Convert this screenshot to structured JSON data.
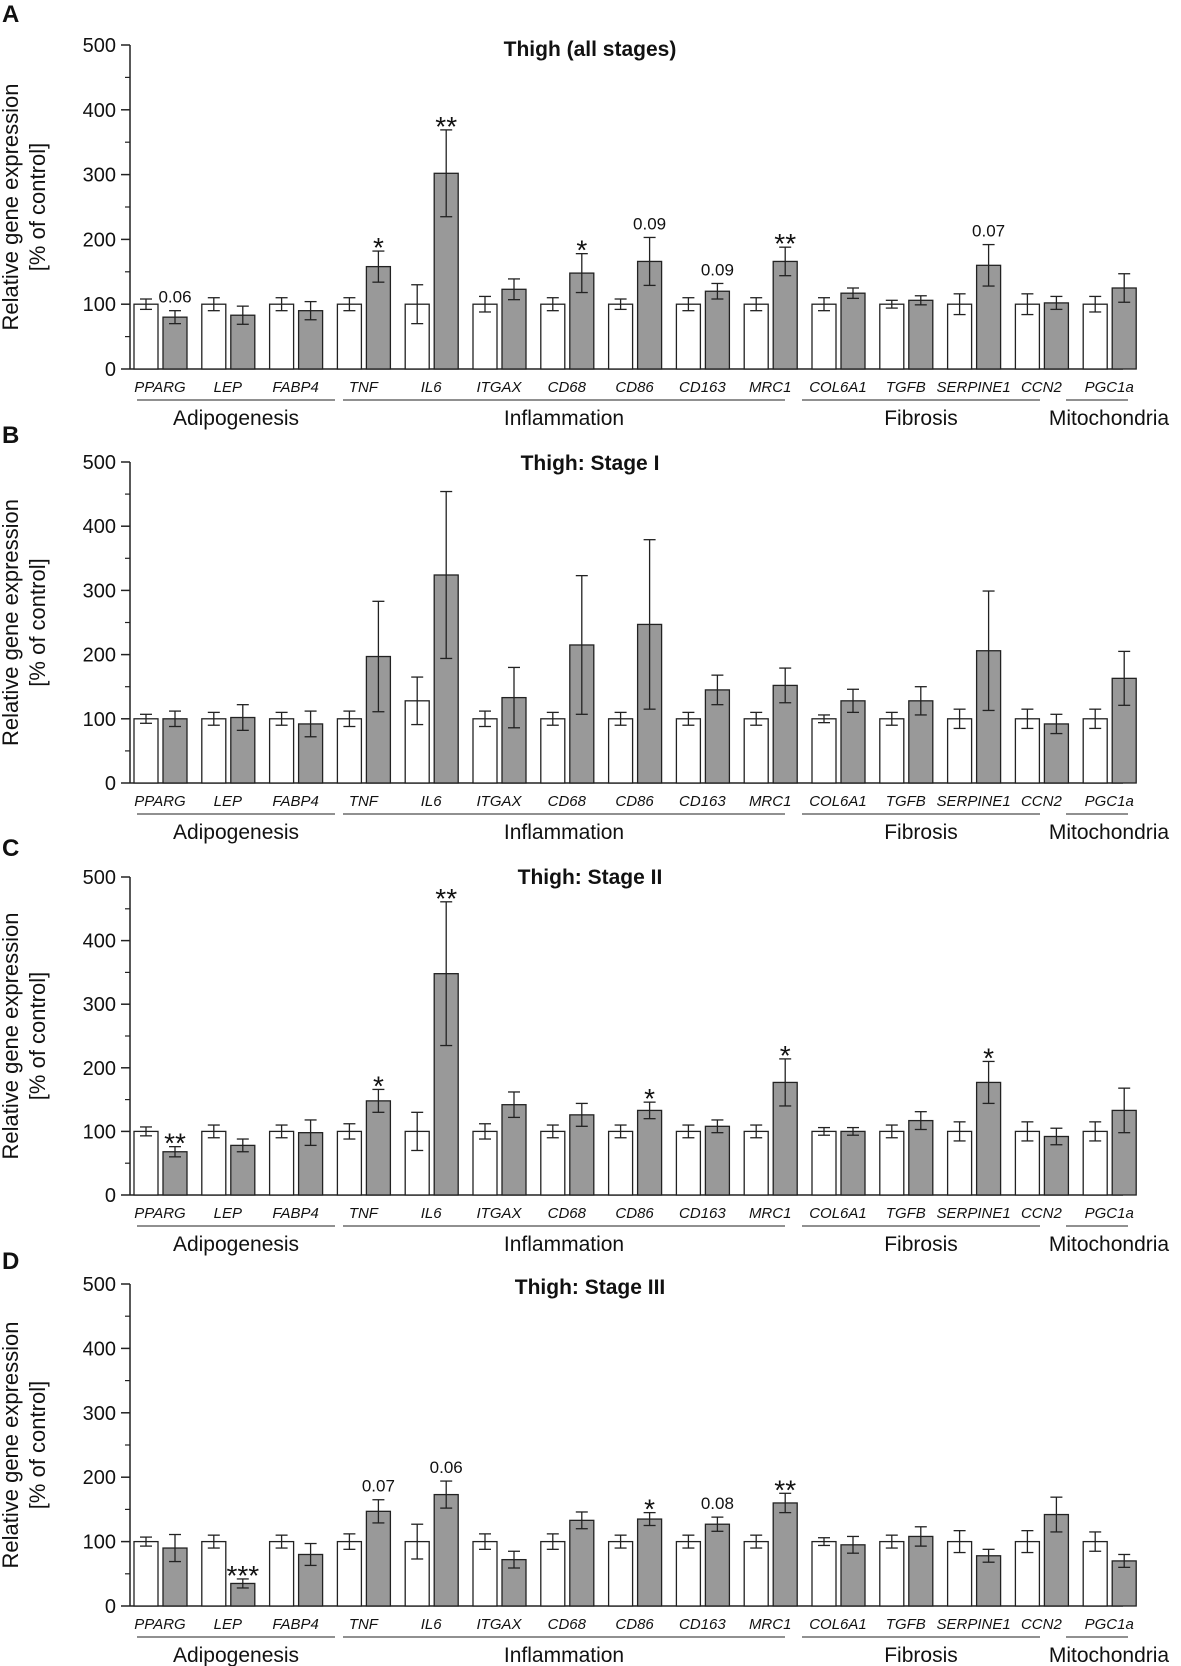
{
  "colors": {
    "control": "#ffffff",
    "treated": "#999999",
    "stroke": "#222222"
  },
  "ylabel_line1": "Relative gene expression",
  "ylabel_line2": "[% of control]",
  "genes": [
    "PPARG",
    "LEP",
    "FABP4",
    "TNF",
    "IL6",
    "ITGAX",
    "CD68",
    "CD86",
    "CD163",
    "MRC1",
    "COL6A1",
    "TGFB",
    "SERPINE1",
    "CCN2",
    "PGC1a"
  ],
  "groups": [
    {
      "label": "Adipogenesis",
      "start": 0,
      "end": 2
    },
    {
      "label": "Inflammation",
      "start": 3,
      "end": 9
    },
    {
      "label": "Fibrosis",
      "start": 10,
      "end": 13
    },
    {
      "label": "Mitochondria",
      "start": 14,
      "end": 14
    }
  ],
  "chart_data": [
    {
      "type": "bar",
      "panel": "A",
      "title": "Thigh (all stages)",
      "ylim": [
        0,
        500
      ],
      "yticks": [
        "0",
        "100",
        "200",
        "300",
        "400",
        "500"
      ],
      "series": [
        {
          "name": "control",
          "values": [
            100,
            100,
            100,
            100,
            100,
            100,
            100,
            100,
            100,
            100,
            100,
            100,
            100,
            100,
            100
          ],
          "errors": [
            8,
            10,
            10,
            10,
            30,
            12,
            10,
            8,
            10,
            10,
            10,
            6,
            16,
            16,
            12
          ]
        },
        {
          "name": "treated",
          "values": [
            80,
            83,
            90,
            158,
            302,
            123,
            148,
            166,
            120,
            166,
            117,
            106,
            160,
            102,
            125
          ],
          "errors": [
            10,
            14,
            14,
            24,
            67,
            16,
            30,
            37,
            12,
            22,
            8,
            7,
            32,
            10,
            22
          ]
        }
      ],
      "annotations": [
        "0.06",
        "",
        "",
        "*",
        "**",
        "",
        "*",
        "0.09",
        "0.09",
        "**",
        "",
        "",
        "0.07",
        "",
        ""
      ]
    },
    {
      "type": "bar",
      "panel": "B",
      "title": "Thigh: Stage I",
      "ylim": [
        0,
        500
      ],
      "yticks": [
        "0",
        "100",
        "200",
        "300",
        "400",
        "500"
      ],
      "series": [
        {
          "name": "control",
          "values": [
            100,
            100,
            100,
            100,
            128,
            100,
            100,
            100,
            100,
            100,
            100,
            100,
            100,
            100,
            100
          ],
          "errors": [
            7,
            10,
            10,
            12,
            37,
            12,
            10,
            10,
            10,
            10,
            6,
            10,
            15,
            15,
            15
          ]
        },
        {
          "name": "treated",
          "values": [
            100,
            102,
            92,
            197,
            324,
            133,
            215,
            247,
            145,
            152,
            128,
            128,
            206,
            92,
            163
          ],
          "errors": [
            12,
            20,
            20,
            86,
            130,
            47,
            108,
            132,
            23,
            27,
            18,
            22,
            93,
            15,
            42
          ]
        }
      ],
      "annotations": [
        "",
        "",
        "",
        "",
        "",
        "",
        "",
        "",
        "",
        "",
        "",
        "",
        "",
        "",
        ""
      ]
    },
    {
      "type": "bar",
      "panel": "C",
      "title": "Thigh: Stage II",
      "ylim": [
        0,
        500
      ],
      "yticks": [
        "0",
        "100",
        "200",
        "300",
        "400",
        "500"
      ],
      "series": [
        {
          "name": "control",
          "values": [
            100,
            100,
            100,
            100,
            100,
            100,
            100,
            100,
            100,
            100,
            100,
            100,
            100,
            100,
            100
          ],
          "errors": [
            7,
            10,
            10,
            12,
            30,
            12,
            10,
            10,
            10,
            10,
            6,
            10,
            15,
            15,
            15
          ]
        },
        {
          "name": "treated",
          "values": [
            68,
            78,
            98,
            148,
            348,
            142,
            126,
            133,
            108,
            177,
            100,
            117,
            177,
            92,
            133
          ],
          "errors": [
            8,
            10,
            20,
            18,
            113,
            20,
            18,
            13,
            10,
            37,
            6,
            14,
            33,
            13,
            35
          ]
        }
      ],
      "annotations": [
        "**",
        "",
        "",
        "*",
        "**",
        "",
        "",
        "*",
        "",
        "*",
        "",
        "",
        "*",
        "",
        ""
      ]
    },
    {
      "type": "bar",
      "panel": "D",
      "title": "Thigh: Stage III",
      "ylim": [
        0,
        500
      ],
      "yticks": [
        "0",
        "100",
        "200",
        "300",
        "400",
        "500"
      ],
      "series": [
        {
          "name": "control",
          "values": [
            100,
            100,
            100,
            100,
            100,
            100,
            100,
            100,
            100,
            100,
            100,
            100,
            100,
            100,
            100
          ],
          "errors": [
            7,
            10,
            10,
            12,
            27,
            12,
            12,
            10,
            10,
            10,
            6,
            10,
            17,
            17,
            15
          ]
        },
        {
          "name": "treated",
          "values": [
            90,
            35,
            80,
            147,
            173,
            72,
            133,
            135,
            127,
            160,
            95,
            108,
            78,
            142,
            70
          ],
          "errors": [
            21,
            7,
            17,
            18,
            21,
            13,
            13,
            10,
            11,
            15,
            13,
            15,
            10,
            27,
            10
          ]
        }
      ],
      "annotations": [
        "",
        "***",
        "",
        "0.07",
        "0.06",
        "",
        "",
        "*",
        "0.08",
        "**",
        "",
        "",
        "",
        "",
        ""
      ]
    }
  ]
}
